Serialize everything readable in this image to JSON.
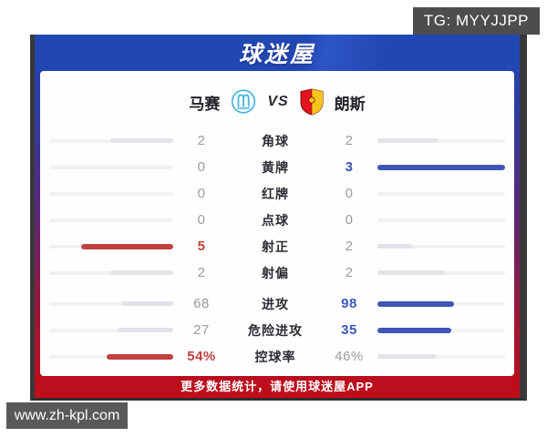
{
  "overlay": {
    "tg_label": "TG: MYYJJPP",
    "site_label": "www.zh-kpl.com"
  },
  "header": {
    "logo_text": "球迷屋"
  },
  "match": {
    "home": {
      "name": "马赛",
      "crest": "om-crest"
    },
    "away": {
      "name": "朗斯",
      "crest": "rcl-crest"
    },
    "vs_label": "VS"
  },
  "stats": {
    "rows": [
      {
        "label": "角球",
        "home": "2",
        "away": "2",
        "home_pct": 51,
        "away_pct": 48,
        "home_color": "gray",
        "away_color": "gray"
      },
      {
        "label": "黄牌",
        "home": "0",
        "away": "3",
        "home_pct": 0,
        "away_pct": 100,
        "home_color": "gray",
        "away_color": "blue"
      },
      {
        "label": "红牌",
        "home": "0",
        "away": "0",
        "home_pct": 0,
        "away_pct": 0,
        "home_color": "gray",
        "away_color": "gray"
      },
      {
        "label": "点球",
        "home": "0",
        "away": "0",
        "home_pct": 0,
        "away_pct": 0,
        "home_color": "gray",
        "away_color": "gray"
      },
      {
        "label": "射正",
        "home": "5",
        "away": "2",
        "home_pct": 74,
        "away_pct": 28,
        "home_color": "red",
        "away_color": "gray"
      },
      {
        "label": "射偏",
        "home": "2",
        "away": "2",
        "home_pct": 51,
        "away_pct": 53,
        "home_color": "gray",
        "away_color": "gray"
      },
      {
        "label": "进攻",
        "home": "68",
        "away": "98",
        "home_pct": 42,
        "away_pct": 60,
        "home_color": "gray",
        "away_color": "blue"
      },
      {
        "label": "危险进攻",
        "home": "27",
        "away": "35",
        "home_pct": 45,
        "away_pct": 58,
        "home_color": "gray",
        "away_color": "blue"
      },
      {
        "label": "控球率",
        "home": "54%",
        "away": "46%",
        "home_pct": 54,
        "away_pct": 46,
        "home_color": "red",
        "away_color": "gray"
      }
    ]
  },
  "footer": {
    "text": "更多数据统计，请使用球迷屋APP"
  },
  "colors": {
    "header_blue": "#2147b3",
    "footer_red": "#c10d17",
    "accent_blue": "#3d56b8",
    "accent_red": "#c2403f",
    "gray_value": "#9b9ba3"
  }
}
